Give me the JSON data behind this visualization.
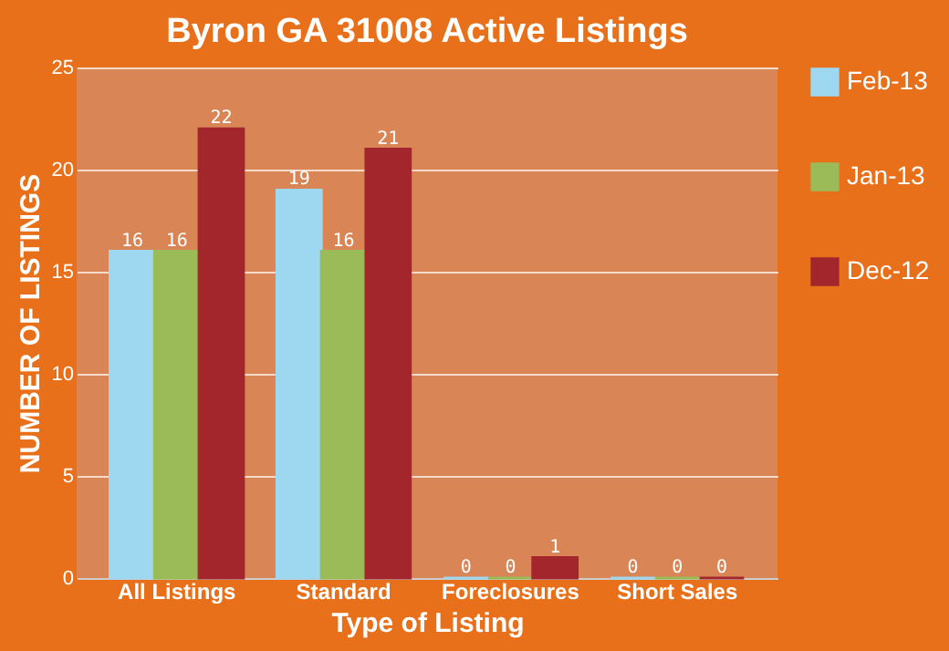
{
  "chart_data": {
    "type": "bar",
    "title": "Byron GA 31008 Active Listings",
    "xlabel": "Type of Listing",
    "ylabel": "NUMBER OF LISTINGS",
    "categories": [
      "All Listings",
      "Standard",
      "Foreclosures",
      "Short Sales"
    ],
    "series": [
      {
        "name": "Feb-13",
        "color": "#9dd8f0",
        "values": [
          16,
          19,
          0,
          0
        ]
      },
      {
        "name": "Jan-13",
        "color": "#9bbb59",
        "values": [
          16,
          16,
          0,
          0
        ]
      },
      {
        "name": "Dec-12",
        "color": "#a3262c",
        "values": [
          22,
          21,
          1,
          0
        ]
      }
    ],
    "ylim": [
      0,
      25
    ],
    "yticks": [
      0,
      5,
      10,
      15,
      20,
      25
    ],
    "grid": "y",
    "legend": "right",
    "data_labels": true
  }
}
